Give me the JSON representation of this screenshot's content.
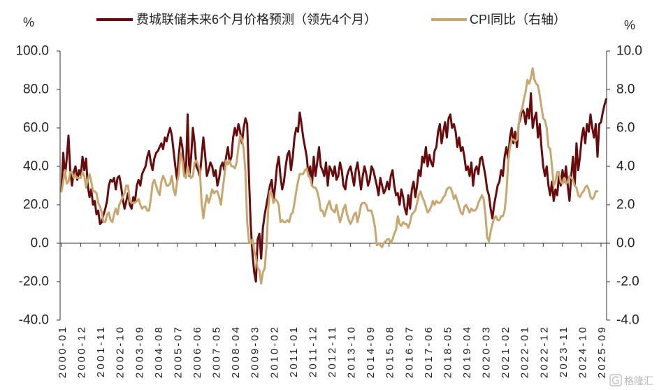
{
  "chart_data": {
    "type": "line",
    "legend": "top",
    "grid": false,
    "x": [
      "2000-01",
      "2000-02",
      "2000-03",
      "2000-04",
      "2000-05",
      "2000-06",
      "2000-07",
      "2000-08",
      "2000-09",
      "2000-10",
      "2000-11",
      "2000-12",
      "2001-01",
      "2001-02",
      "2001-03",
      "2001-04",
      "2001-05",
      "2001-06",
      "2001-07",
      "2001-08",
      "2001-09",
      "2001-10",
      "2001-11",
      "2001-12",
      "2002-01",
      "2002-02",
      "2002-03",
      "2002-04",
      "2002-05",
      "2002-06",
      "2002-07",
      "2002-08",
      "2002-09",
      "2002-10",
      "2002-11",
      "2002-12",
      "2003-01",
      "2003-02",
      "2003-03",
      "2003-04",
      "2003-05",
      "2003-06",
      "2003-07",
      "2003-08",
      "2003-09",
      "2003-10",
      "2003-11",
      "2003-12",
      "2004-01",
      "2004-02",
      "2004-03",
      "2004-04",
      "2004-05",
      "2004-06",
      "2004-07",
      "2004-08",
      "2004-09",
      "2004-10",
      "2004-11",
      "2004-12",
      "2005-01",
      "2005-02",
      "2005-03",
      "2005-04",
      "2005-05",
      "2005-06",
      "2005-07",
      "2005-08",
      "2005-09",
      "2005-10",
      "2005-11",
      "2005-12",
      "2006-01",
      "2006-02",
      "2006-03",
      "2006-04",
      "2006-05",
      "2006-06",
      "2006-07",
      "2006-08",
      "2006-09",
      "2006-10",
      "2006-11",
      "2006-12",
      "2007-01",
      "2007-02",
      "2007-03",
      "2007-04",
      "2007-05",
      "2007-06",
      "2007-07",
      "2007-08",
      "2007-09",
      "2007-10",
      "2007-11",
      "2007-12",
      "2008-01",
      "2008-02",
      "2008-03",
      "2008-04",
      "2008-05",
      "2008-06",
      "2008-07",
      "2008-08",
      "2008-09",
      "2008-10",
      "2008-11",
      "2008-12",
      "2009-01",
      "2009-02",
      "2009-03",
      "2009-04",
      "2009-05",
      "2009-06",
      "2009-07",
      "2009-08",
      "2009-09",
      "2009-10",
      "2009-11",
      "2009-12",
      "2010-01",
      "2010-02",
      "2010-03",
      "2010-04",
      "2010-05",
      "2010-06",
      "2010-07",
      "2010-08",
      "2010-09",
      "2010-10",
      "2010-11",
      "2010-12",
      "2011-01",
      "2011-02",
      "2011-03",
      "2011-04",
      "2011-05",
      "2011-06",
      "2011-07",
      "2011-08",
      "2011-09",
      "2011-10",
      "2011-11",
      "2011-12",
      "2012-01",
      "2012-02",
      "2012-03",
      "2012-04",
      "2012-05",
      "2012-06",
      "2012-07",
      "2012-08",
      "2012-09",
      "2012-10",
      "2012-11",
      "2012-12",
      "2013-01",
      "2013-02",
      "2013-03",
      "2013-04",
      "2013-05",
      "2013-06",
      "2013-07",
      "2013-08",
      "2013-09",
      "2013-10",
      "2013-11",
      "2013-12",
      "2014-01",
      "2014-02",
      "2014-03",
      "2014-04",
      "2014-05",
      "2014-06",
      "2014-07",
      "2014-08",
      "2014-09",
      "2014-10",
      "2014-11",
      "2014-12",
      "2015-01",
      "2015-02",
      "2015-03",
      "2015-04",
      "2015-05",
      "2015-06",
      "2015-07",
      "2015-08",
      "2015-09",
      "2015-10",
      "2015-11",
      "2015-12",
      "2016-01",
      "2016-02",
      "2016-03",
      "2016-04",
      "2016-05",
      "2016-06",
      "2016-07",
      "2016-08",
      "2016-09",
      "2016-10",
      "2016-11",
      "2016-12",
      "2017-01",
      "2017-02",
      "2017-03",
      "2017-04",
      "2017-05",
      "2017-06",
      "2017-07",
      "2017-08",
      "2017-09",
      "2017-10",
      "2017-11",
      "2017-12",
      "2018-01",
      "2018-02",
      "2018-03",
      "2018-04",
      "2018-05",
      "2018-06",
      "2018-07",
      "2018-08",
      "2018-09",
      "2018-10",
      "2018-11",
      "2018-12",
      "2019-01",
      "2019-02",
      "2019-03",
      "2019-04",
      "2019-05",
      "2019-06",
      "2019-07",
      "2019-08",
      "2019-09",
      "2019-10",
      "2019-11",
      "2019-12",
      "2020-01",
      "2020-02",
      "2020-03",
      "2020-04",
      "2020-05",
      "2020-06",
      "2020-07",
      "2020-08",
      "2020-09",
      "2020-10",
      "2020-11",
      "2020-12",
      "2021-01",
      "2021-02",
      "2021-03",
      "2021-04",
      "2021-05",
      "2021-06",
      "2021-07",
      "2021-08",
      "2021-09",
      "2021-10",
      "2021-11",
      "2021-12",
      "2022-01",
      "2022-02",
      "2022-03",
      "2022-04",
      "2022-05",
      "2022-06",
      "2022-07",
      "2022-08",
      "2022-09",
      "2022-10",
      "2022-11",
      "2022-12",
      "2023-01",
      "2023-02",
      "2023-03",
      "2023-04",
      "2023-05",
      "2023-06",
      "2023-07",
      "2023-08",
      "2023-09",
      "2023-10",
      "2023-11",
      "2023-12",
      "2024-01",
      "2024-02",
      "2024-03",
      "2024-04",
      "2024-05",
      "2024-06",
      "2024-07",
      "2024-08",
      "2024-09",
      "2024-10",
      "2024-11",
      "2024-12",
      "2025-01",
      "2025-02",
      "2025-03",
      "2025-04",
      "2025-05",
      "2025-06",
      "2025-07",
      "2025-08",
      "2025-09",
      "2025-10",
      "2025-11",
      "2025-12"
    ],
    "x_ticks": [
      "2000-01",
      "2000-12",
      "2001-11",
      "2002-10",
      "2003-09",
      "2004-08",
      "2005-07",
      "2006-06",
      "2007-05",
      "2008-04",
      "2009-03",
      "2010-02",
      "2011-01",
      "2011-12",
      "2012-11",
      "2013-10",
      "2014-09",
      "2015-08",
      "2016-07",
      "2017-06",
      "2018-05",
      "2019-04",
      "2020-03",
      "2021-02",
      "2022-01",
      "2022-12",
      "2023-11",
      "2024-10",
      "2025-09"
    ],
    "series": [
      {
        "name": "费城联储未来6个月价格预测（领先4个月）",
        "axis": "left",
        "color": "#6B0A0A",
        "values": [
          27,
          47,
          35,
          44,
          56,
          38,
          30,
          37,
          40,
          33,
          38,
          35,
          45,
          38,
          44,
          30,
          24,
          28,
          20,
          22,
          15,
          17,
          10,
          11,
          15,
          18,
          22,
          30,
          33,
          32,
          34,
          28,
          34,
          35,
          30,
          23,
          18,
          22,
          26,
          20,
          18,
          24,
          22,
          30,
          33,
          30,
          36,
          38,
          40,
          45,
          48,
          42,
          38,
          44,
          47,
          48,
          50,
          52,
          49,
          55,
          53,
          57,
          60,
          56,
          48,
          40,
          33,
          46,
          55,
          50,
          40,
          35,
          67,
          35,
          45,
          60,
          52,
          40,
          38,
          35,
          45,
          55,
          46,
          35,
          38,
          42,
          40,
          35,
          38,
          30,
          34,
          40,
          42,
          38,
          45,
          50,
          42,
          45,
          55,
          60,
          56,
          62,
          58,
          52,
          60,
          65,
          62,
          35,
          10,
          -5,
          -15,
          -20,
          2,
          5,
          -8,
          8,
          15,
          20,
          25,
          30,
          33,
          22,
          30,
          40,
          45,
          35,
          28,
          32,
          40,
          46,
          48,
          38,
          45,
          55,
          60,
          58,
          68,
          62,
          55,
          50,
          45,
          35,
          40,
          30,
          45,
          35,
          42,
          50,
          40,
          38,
          35,
          42,
          30,
          40,
          38,
          35,
          40,
          33,
          35,
          42,
          38,
          30,
          28,
          35,
          38,
          40,
          35,
          30,
          38,
          42,
          35,
          28,
          35,
          40,
          36,
          30,
          33,
          40,
          38,
          34,
          30,
          25,
          34,
          30,
          26,
          28,
          32,
          28,
          35,
          38,
          30,
          25,
          26,
          20,
          28,
          24,
          18,
          15,
          25,
          18,
          28,
          32,
          24,
          30,
          38,
          35,
          45,
          42,
          50,
          40,
          46,
          42,
          40,
          48,
          50,
          58,
          62,
          52,
          58,
          63,
          55,
          65,
          67,
          60,
          62,
          58,
          50,
          55,
          48,
          50,
          45,
          38,
          40,
          35,
          42,
          30,
          38,
          40,
          36,
          44,
          45,
          40,
          35,
          28,
          25,
          18,
          13,
          20,
          25,
          30,
          32,
          38,
          35,
          45,
          50,
          44,
          55,
          60,
          52,
          58,
          50,
          62,
          65,
          70,
          68,
          62,
          70,
          65,
          78,
          60,
          65,
          68,
          55,
          62,
          50,
          40,
          35,
          40,
          30,
          25,
          32,
          22,
          28,
          25,
          35,
          30,
          38,
          32,
          40,
          30,
          22,
          35,
          45,
          30,
          52,
          38,
          45,
          55,
          60,
          52,
          62,
          58,
          67,
          60,
          55,
          62,
          45,
          62,
          63,
          68,
          72,
          75
        ]
      },
      {
        "name": "CPI同比（右轴）",
        "axis": "right",
        "color": "#C9A76C",
        "values": [
          2.7,
          3.2,
          3.8,
          3.1,
          3.2,
          3.7,
          3.7,
          3.4,
          3.5,
          3.4,
          3.4,
          3.4,
          3.7,
          3.5,
          2.9,
          3.3,
          3.6,
          3.2,
          2.7,
          2.7,
          2.6,
          2.1,
          1.9,
          1.6,
          1.1,
          1.1,
          1.5,
          1.6,
          1.2,
          1.1,
          1.5,
          1.8,
          1.5,
          2.0,
          2.2,
          2.4,
          2.6,
          3.0,
          3.0,
          2.2,
          2.1,
          2.1,
          2.1,
          2.2,
          2.3,
          2.0,
          1.8,
          1.9,
          1.9,
          1.7,
          1.7,
          2.3,
          3.1,
          3.3,
          3.0,
          2.7,
          2.5,
          3.2,
          3.5,
          3.3,
          3.0,
          3.0,
          3.1,
          3.5,
          2.8,
          2.5,
          3.2,
          3.6,
          4.7,
          4.3,
          3.5,
          3.4,
          4.0,
          3.6,
          3.4,
          3.5,
          4.2,
          4.3,
          4.1,
          3.8,
          2.1,
          1.3,
          2.0,
          2.5,
          2.1,
          2.4,
          2.8,
          2.6,
          2.7,
          2.7,
          2.4,
          2.0,
          2.8,
          3.5,
          4.3,
          4.1,
          4.3,
          4.0,
          4.0,
          3.9,
          4.2,
          5.0,
          5.6,
          5.4,
          4.9,
          3.7,
          1.1,
          0.1,
          0.0,
          0.2,
          -0.4,
          -0.7,
          -1.3,
          -1.4,
          -2.1,
          -1.5,
          -1.3,
          -0.2,
          1.8,
          2.7,
          2.6,
          2.1,
          2.3,
          2.2,
          2.0,
          1.1,
          1.2,
          1.1,
          1.1,
          1.2,
          1.1,
          1.5,
          1.6,
          2.1,
          2.7,
          3.2,
          3.6,
          3.6,
          3.6,
          3.8,
          3.9,
          3.5,
          3.4,
          3.0,
          2.9,
          2.9,
          2.7,
          2.3,
          1.7,
          1.7,
          1.4,
          1.7,
          2.0,
          2.2,
          1.8,
          1.7,
          1.6,
          2.0,
          1.5,
          1.1,
          1.4,
          1.8,
          2.0,
          1.5,
          1.2,
          1.0,
          1.2,
          1.5,
          1.6,
          1.1,
          1.5,
          2.0,
          2.1,
          2.1,
          2.0,
          1.7,
          1.7,
          1.7,
          1.3,
          0.8,
          -0.1,
          0.0,
          -0.1,
          -0.2,
          0.0,
          0.1,
          0.2,
          0.2,
          0.0,
          0.2,
          0.5,
          0.7,
          1.4,
          1.0,
          0.9,
          1.1,
          1.0,
          1.0,
          0.8,
          1.1,
          1.5,
          1.6,
          1.7,
          2.1,
          2.5,
          2.7,
          2.4,
          2.2,
          1.9,
          1.6,
          1.7,
          1.9,
          2.2,
          2.0,
          2.2,
          2.1,
          2.1,
          2.2,
          2.4,
          2.5,
          2.8,
          2.9,
          2.9,
          2.7,
          2.3,
          2.5,
          2.2,
          1.9,
          1.6,
          1.5,
          1.9,
          2.0,
          1.8,
          1.6,
          1.8,
          1.7,
          1.7,
          1.8,
          2.1,
          2.3,
          2.5,
          2.3,
          1.5,
          0.3,
          0.1,
          0.6,
          1.0,
          1.3,
          1.4,
          1.2,
          1.2,
          1.4,
          1.4,
          1.7,
          2.6,
          4.2,
          5.0,
          5.4,
          5.4,
          5.3,
          5.4,
          6.2,
          6.8,
          7.0,
          7.5,
          7.9,
          8.5,
          8.3,
          8.6,
          9.1,
          8.5,
          8.3,
          8.2,
          7.7,
          7.1,
          6.5,
          6.4,
          6.0,
          5.0,
          4.9,
          4.0,
          3.0,
          3.2,
          3.7,
          3.7,
          3.2,
          3.1,
          3.4,
          3.1,
          3.2,
          3.5,
          3.4,
          3.3,
          3.0,
          2.9,
          2.5,
          2.4,
          2.6,
          2.7,
          2.9,
          3.0,
          2.8,
          2.4,
          2.3,
          2.4,
          2.7,
          2.7,
          null,
          null,
          null,
          null,
          null
        ]
      }
    ],
    "y_left": {
      "label": "%",
      "range": [
        -40,
        100
      ],
      "ticks": [
        "100.0",
        "80.0",
        "60.0",
        "40.0",
        "20.0",
        "0.0",
        "-20.0",
        "-40.0"
      ]
    },
    "y_right": {
      "label": "%",
      "range": [
        -4,
        10
      ],
      "ticks": [
        "10.0",
        "8.0",
        "6.0",
        "4.0",
        "2.0",
        "0.0",
        "-2.0",
        "-4.0"
      ]
    }
  },
  "watermark": "格隆汇"
}
